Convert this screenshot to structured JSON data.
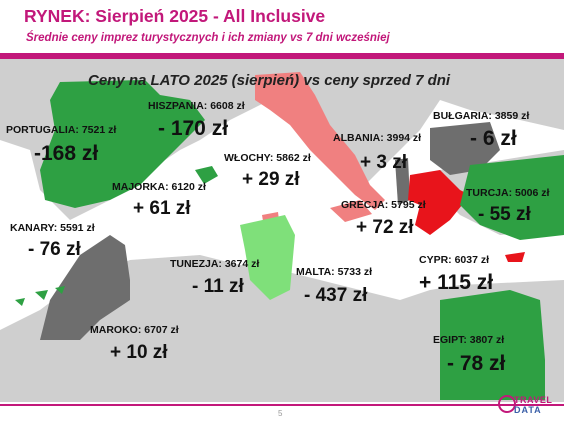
{
  "header": {
    "title": "RYNEK: Sierpień 2025 - All Inclusive",
    "subtitle": "Średnie ceny imprez turystycznych i ich zmiany vs 7 dni wcześniej"
  },
  "map": {
    "title": "Ceny na LATO 2025 (sierpień) vs ceny sprzed 7 dni",
    "colors": {
      "sea": "#ffffff",
      "land": "#cfcfcf",
      "increase": "#e8141b",
      "decrease_small": "#6e6e6e",
      "decrease_large": "#2ea043",
      "light_green": "#7fe07a",
      "salmon": "#f08080"
    },
    "countries": [
      {
        "key": "portugalia",
        "label": "PORTUGALIA: 7521 zł",
        "change": "-168 zł"
      },
      {
        "key": "hiszpania",
        "label": "HISZPANIA: 6608 zł",
        "change": "- 170 zł"
      },
      {
        "key": "wlochy",
        "label": "WŁOCHY: 5862 zł",
        "change": "+ 29 zł"
      },
      {
        "key": "albania",
        "label": "ALBANIA: 3994 zł",
        "change": "+ 3 zł"
      },
      {
        "key": "bulgaria",
        "label": "BUŁGARIA: 3859 zł",
        "change": "- 6 zł"
      },
      {
        "key": "majorka",
        "label": "MAJORKA: 6120 zł",
        "change": "+ 61 zł"
      },
      {
        "key": "turcja",
        "label": "TURCJA: 5006 zł",
        "change": "- 55 zł"
      },
      {
        "key": "grecja",
        "label": "GRECJA: 5795 zł",
        "change": "+ 72 zł"
      },
      {
        "key": "kanary",
        "label": "KANARY: 5591 zł",
        "change": "- 76 zł"
      },
      {
        "key": "tunezja",
        "label": "TUNEZJA: 3674 zł",
        "change": "- 11 zł"
      },
      {
        "key": "malta",
        "label": "MALTA: 5733 zł",
        "change": "- 437 zł"
      },
      {
        "key": "cypr",
        "label": "CYPR: 6037 zł",
        "change": "+ 115 zł"
      },
      {
        "key": "maroko",
        "label": "MAROKO: 6707 zł",
        "change": "+ 10 zł"
      },
      {
        "key": "egipt",
        "label": "EGIPT: 3807 zł",
        "change": "- 78 zł"
      }
    ]
  },
  "footer": {
    "page_number": "5",
    "logo_line1": "TRAVEL",
    "logo_line2": "DATA"
  }
}
